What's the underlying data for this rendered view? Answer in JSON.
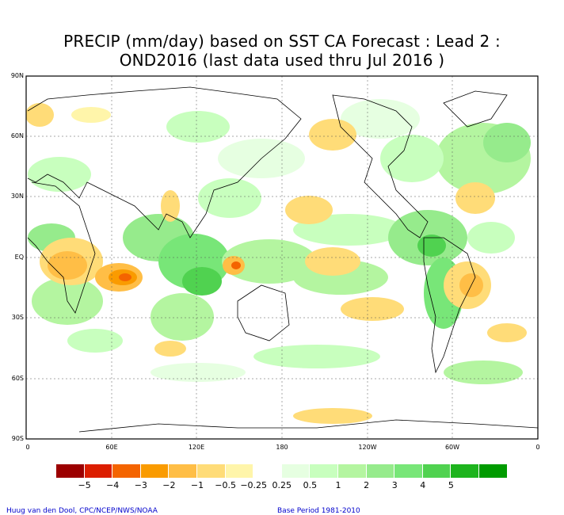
{
  "title": {
    "line1": "PRECIP (mm/day) based on SST CA Forecast : Lead 2 :",
    "line2": "OND2016 (last data used thru Jul 2016 )"
  },
  "axes": {
    "lat_labels": [
      "90N",
      "60N",
      "30N",
      "EQ",
      "30S",
      "60S",
      "90S"
    ],
    "lon_labels": [
      "0",
      "60E",
      "120E",
      "180",
      "120W",
      "60W",
      "0"
    ]
  },
  "legend": {
    "colors": [
      "#9c0000",
      "#dc1e00",
      "#f46400",
      "#fa9b00",
      "#ffbe46",
      "#ffdc78",
      "#fff5aa",
      "#ffffff",
      "#e6ffe1",
      "#c8ffbe",
      "#b4f5a0",
      "#96eb8c",
      "#78e678",
      "#50d250",
      "#1eb41e",
      "#009b00"
    ],
    "labels": [
      "−5",
      "−4",
      "−3",
      "−2",
      "−1",
      "−0.5",
      "−0.25",
      "0.25",
      "0.5",
      "1",
      "2",
      "3",
      "4",
      "5"
    ]
  },
  "credits": {
    "left": "Huug van den Dool, CPC/NCEP/NWS/NOAA",
    "right": "Base Period 1981-2010"
  }
}
